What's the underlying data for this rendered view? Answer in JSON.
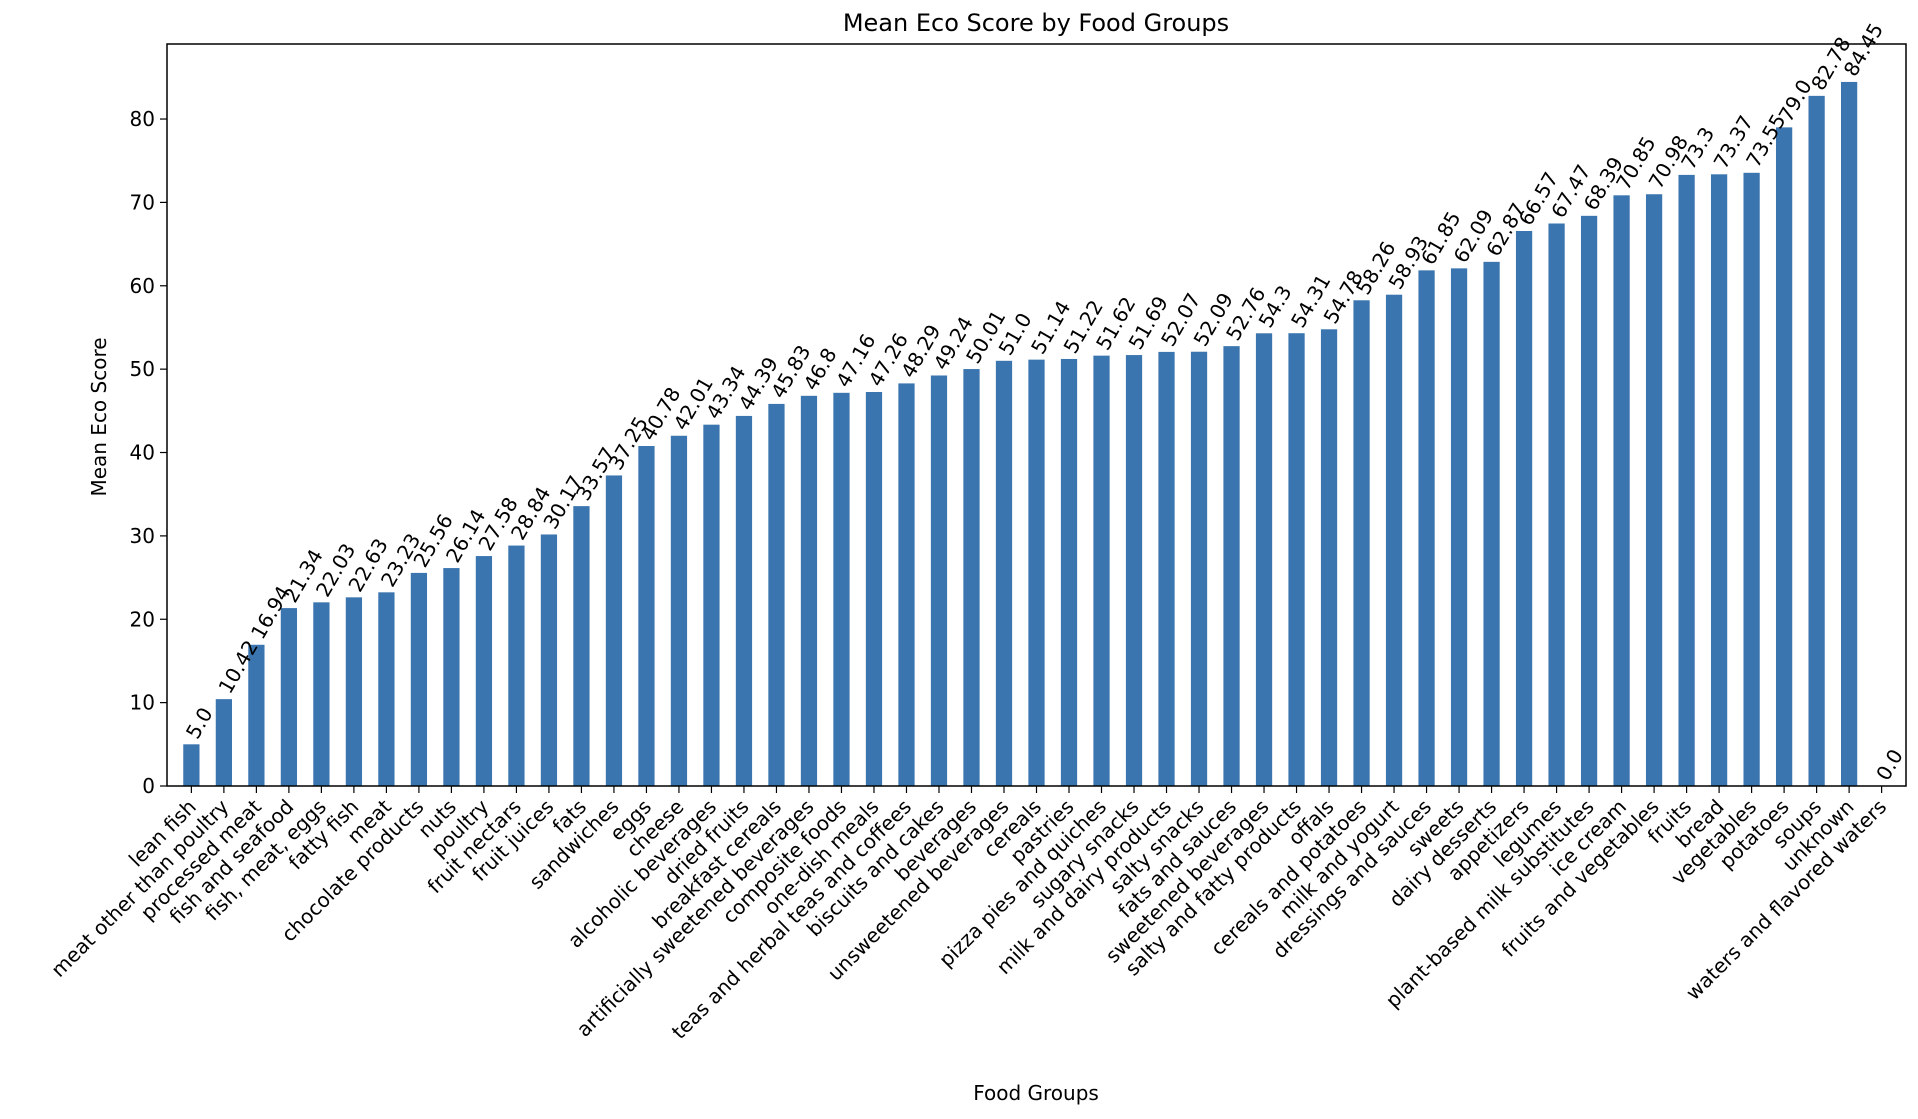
{
  "chart_data": {
    "type": "bar",
    "title": "Mean Eco Score by Food Groups",
    "xlabel": "Food Groups",
    "ylabel": "Mean Eco Score",
    "ylim": [
      0,
      89
    ],
    "yticks": [
      "0",
      "10",
      "20",
      "30",
      "40",
      "50",
      "60",
      "70",
      "80"
    ],
    "grid": false,
    "bar_color": "#3b75af",
    "categories": [
      "lean fish",
      "meat other than poultry",
      "processed meat",
      "fish and seafood",
      "fish, meat, eggs",
      "fatty fish",
      "meat",
      "chocolate products",
      "nuts",
      "poultry",
      "fruit nectars",
      "fruit juices",
      "fats",
      "sandwiches",
      "eggs",
      "cheese",
      "alcoholic beverages",
      "dried fruits",
      "breakfast cereals",
      "artificially sweetened beverages",
      "composite foods",
      "one-dish meals",
      "teas and herbal teas and coffees",
      "biscuits and cakes",
      "beverages",
      "unsweetened beverages",
      "cereals",
      "pastries",
      "pizza pies and quiches",
      "sugary snacks",
      "milk and dairy products",
      "salty snacks",
      "fats and sauces",
      "sweetened beverages",
      "salty and fatty products",
      "offals",
      "cereals and potatoes",
      "milk and yogurt",
      "dressings and sauces",
      "sweets",
      "dairy desserts",
      "appetizers",
      "legumes",
      "plant-based milk substitutes",
      "ice cream",
      "fruits and vegetables",
      "fruits",
      "bread",
      "vegetables",
      "potatoes",
      "soups",
      "unknown",
      "waters and flavored waters"
    ],
    "values": [
      5.0,
      10.42,
      16.94,
      21.34,
      22.03,
      22.63,
      23.23,
      25.56,
      26.14,
      27.58,
      28.84,
      30.17,
      33.57,
      37.25,
      40.78,
      42.01,
      43.34,
      44.39,
      45.83,
      46.8,
      47.16,
      47.26,
      48.29,
      49.24,
      50.01,
      51.0,
      51.14,
      51.22,
      51.62,
      51.69,
      52.07,
      52.09,
      52.76,
      54.3,
      54.31,
      54.78,
      58.26,
      58.93,
      61.85,
      62.09,
      62.87,
      66.57,
      67.47,
      68.39,
      70.85,
      70.98,
      73.3,
      73.37,
      73.55,
      79.0,
      82.78,
      84.45,
      0.0
    ],
    "value_labels": [
      "5.0",
      "10.42",
      "16.94",
      "21.34",
      "22.03",
      "22.63",
      "23.23",
      "25.56",
      "26.14",
      "27.58",
      "28.84",
      "30.17",
      "33.57",
      "37.25",
      "40.78",
      "42.01",
      "43.34",
      "44.39",
      "45.83",
      "46.8",
      "47.16",
      "47.26",
      "48.29",
      "49.24",
      "50.01",
      "51.0",
      "51.14",
      "51.22",
      "51.62",
      "51.69",
      "52.07",
      "52.09",
      "52.76",
      "54.3",
      "54.31",
      "54.78",
      "58.26",
      "58.93",
      "61.85",
      "62.09",
      "62.87",
      "66.57",
      "67.47",
      "68.39",
      "70.85",
      "70.98",
      "73.3",
      "73.37",
      "73.55",
      "79.0",
      "82.78",
      "84.45",
      "0.0"
    ]
  }
}
